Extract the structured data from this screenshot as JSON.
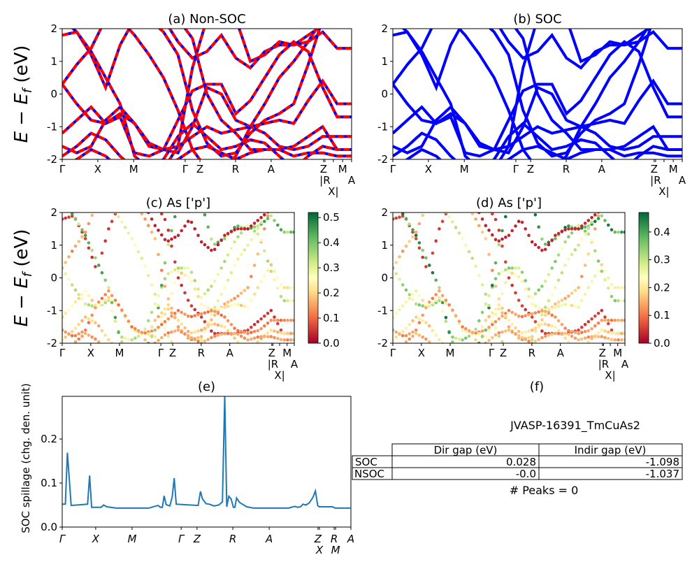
{
  "chart_data": [
    {
      "id": "a",
      "type": "line",
      "title": "(a) Non-SOC",
      "ylabel": {
        "main": "E − E",
        "sub": "f",
        "unit": " (eV)"
      },
      "ylim": [
        -2,
        2
      ],
      "yticks": [
        -2,
        -1,
        0,
        1,
        2
      ],
      "xticks": [
        "Γ",
        "X",
        "M",
        "Γ",
        "Z",
        "R",
        "A",
        "Z",
        "|R",
        "X|",
        "M",
        "A"
      ],
      "line_colors": [
        "#ff0000",
        "#0000ff"
      ],
      "style": "red dashed over blue"
    },
    {
      "id": "b",
      "type": "line",
      "title": "(b) SOC",
      "ylim": [
        -2,
        2
      ],
      "yticks": [
        -2,
        -1,
        0,
        1,
        2
      ],
      "xticks": [
        "Γ",
        "X",
        "M",
        "Γ",
        "Z",
        "R",
        "A",
        "Z",
        "|R",
        "X|",
        "M",
        "A"
      ],
      "line_colors": [
        "#0000ff"
      ]
    },
    {
      "id": "c",
      "type": "scatter",
      "title": "(c)  As ['p']",
      "ylabel": {
        "main": "E − E",
        "sub": "f",
        "unit": " (eV)"
      },
      "ylim": [
        -2,
        2
      ],
      "yticks": [
        -2,
        -1,
        0,
        1,
        2
      ],
      "xticks": [
        "Γ",
        "X",
        "M",
        "Γ",
        "Z",
        "R",
        "A",
        "Z",
        "|R",
        "X|",
        "M",
        "A"
      ],
      "colormap": "RdYlGn",
      "colorbar_range": [
        0,
        0.52
      ],
      "colorbar_ticks": [
        "0.0",
        "0.1",
        "0.2",
        "0.3",
        "0.4",
        "0.5"
      ]
    },
    {
      "id": "d",
      "type": "scatter",
      "title": "(d) As ['p']",
      "ylim": [
        -2,
        2
      ],
      "yticks": [
        -2,
        -1,
        0,
        1,
        2
      ],
      "xticks": [
        "Γ",
        "X",
        "M",
        "Γ",
        "Z",
        "R",
        "A",
        "Z",
        "|R",
        "X|",
        "M",
        "A"
      ],
      "colormap": "RdYlGn",
      "colorbar_range": [
        0,
        0.47
      ],
      "colorbar_ticks": [
        "0.0",
        "0.1",
        "0.2",
        "0.3",
        "0.4"
      ]
    },
    {
      "id": "e",
      "type": "line",
      "title": "(e)",
      "ylabel": "SOC spillage (chg. den. unit)",
      "ylim": [
        0,
        0.297
      ],
      "yticks": [
        "0.0",
        "0.1",
        "0.2"
      ],
      "xticks": [
        "Γ",
        "X",
        "M",
        "Γ",
        "Z",
        "R",
        "A",
        "Z",
        "X",
        "R",
        "M",
        "A"
      ],
      "xtick_pos": [
        0,
        0.116,
        0.242,
        0.412,
        0.467,
        0.591,
        0.717,
        0.886,
        0.891,
        0.942,
        0.947,
        1.0
      ],
      "color": "#1f77b4",
      "x": [
        0,
        0.011,
        0.018,
        0.031,
        0.088,
        0.095,
        0.102,
        0.135,
        0.143,
        0.155,
        0.187,
        0.3,
        0.332,
        0.34,
        0.347,
        0.353,
        0.36,
        0.373,
        0.381,
        0.388,
        0.395,
        0.471,
        0.479,
        0.486,
        0.498,
        0.51,
        0.526,
        0.542,
        0.555,
        0.563,
        0.57,
        0.577,
        0.585,
        0.593,
        0.598,
        0.604,
        0.614,
        0.639,
        0.663,
        0.784,
        0.806,
        0.815,
        0.826,
        0.834,
        0.844,
        0.856,
        0.869,
        0.877,
        0.885,
        0.89,
        0.937,
        0.945,
        0.998
      ],
      "y": [
        0.052,
        0.052,
        0.169,
        0.049,
        0.052,
        0.117,
        0.045,
        0.045,
        0.05,
        0.046,
        0.043,
        0.043,
        0.049,
        0.045,
        0.045,
        0.071,
        0.051,
        0.048,
        0.069,
        0.111,
        0.052,
        0.049,
        0.081,
        0.064,
        0.053,
        0.052,
        0.048,
        0.05,
        0.057,
        0.298,
        0.046,
        0.07,
        0.064,
        0.045,
        0.045,
        0.066,
        0.056,
        0.046,
        0.043,
        0.043,
        0.047,
        0.045,
        0.046,
        0.052,
        0.05,
        0.055,
        0.068,
        0.082,
        0.049,
        0.046,
        0.046,
        0.043,
        0.043
      ]
    }
  ],
  "bands": {
    "xtick_pos": [
      0,
      0.123,
      0.247,
      0.425,
      0.476,
      0.599,
      0.722,
      0.903,
      0.908,
      0.937,
      0.969,
      1.0
    ],
    "energies": [
      [
        1.8,
        1.9,
        1.2,
        0.2,
        1.5,
        2.3,
        2.3,
        2.3,
        2.3,
        1.7,
        0.0,
        -0.8,
        -1.2,
        -1.7,
        -1.7,
        -1.7,
        -1.6,
        -1.3,
        -1.0,
        -1.7,
        -1.7
      ],
      [
        0.3,
        0.9,
        1.4,
        2.3,
        2.3,
        2.3,
        2.3,
        1.9,
        1.2,
        -0.5,
        -1.5,
        -1.9,
        -1.8,
        -1.2,
        -0.8,
        -0.6,
        -0.3,
        0.9,
        2.3,
        2.3,
        2.3
      ],
      [
        0.3,
        -0.3,
        -0.8,
        -0.9,
        -0.7,
        -1.8,
        -1.9,
        -1.7,
        -0.8,
        0.1,
        0.3,
        0.3,
        -0.6,
        -0.2,
        0.5,
        1.2,
        1.6,
        1.3,
        0.2,
        -0.7,
        -0.7
      ],
      [
        -1.2,
        -0.8,
        -0.4,
        -0.9,
        -0.6,
        -0.9,
        -1.6,
        -1.7,
        -1.8,
        -1.0,
        0.2,
        0.0,
        -0.8,
        -1.0,
        -0.9,
        -0.8,
        -0.9,
        -0.2,
        0.4,
        -0.3,
        -0.3
      ],
      [
        -1.6,
        -1.8,
        -1.6,
        -0.8,
        -0.4,
        -0.9,
        -1.5,
        -1.7,
        -1.6,
        -1.3,
        -1.0,
        -1.2,
        -1.1,
        -1.0,
        -1.2,
        -1.6,
        -1.7,
        -1.6,
        -1.3,
        -1.3,
        -1.3
      ],
      [
        -1.9,
        -1.6,
        -1.2,
        -1.4,
        -1.9,
        -2.3,
        -2.3,
        -2.0,
        -1.3,
        -0.9,
        -1.3,
        -1.7,
        -1.6,
        -1.4,
        -1.5,
        -1.9,
        -2.3,
        -1.9,
        -1.6,
        -1.7,
        -1.7
      ],
      [
        2.3,
        1.9,
        1.3,
        0.5,
        -0.3,
        -1.9,
        -2.3,
        -2.3,
        -1.6,
        0.8,
        2.3,
        2.3,
        2.3,
        1.0,
        1.2,
        1.6,
        1.5,
        1.6,
        1.9,
        1.4,
        1.4
      ],
      [
        2.3,
        2.3,
        2.3,
        2.3,
        2.3,
        1.8,
        1.2,
        0.5,
        -0.5,
        -1.7,
        -2.3,
        -2.3,
        -1.9,
        -1.0,
        -0.3,
        0.5,
        1.0,
        1.6,
        2.3,
        2.3,
        2.3
      ],
      [
        2.3,
        2.3,
        2.3,
        2.3,
        2.3,
        2.3,
        2.3,
        2.3,
        1.6,
        1.1,
        1.3,
        1.8,
        1.1,
        0.8,
        1.3,
        1.5,
        1.5,
        1.8,
        2.1,
        2.3,
        2.3
      ],
      [
        -2.3,
        -2.0,
        -1.7,
        -1.9,
        -2.3,
        -2.3,
        -2.3,
        -2.3,
        -2.0,
        -1.7,
        -1.6,
        -1.8,
        -2.0,
        -1.8,
        -1.7,
        -1.7,
        -1.9,
        -1.8,
        -1.8,
        -1.9,
        -1.9
      ]
    ],
    "as_p_weight": [
      0.05,
      0.15,
      0.3,
      0.22,
      0.12,
      0.18,
      0.38,
      0.26,
      0.03,
      0.14
    ]
  },
  "panel_f": {
    "title": "(f)",
    "material": "JVASP-16391_TmCuAs2",
    "table": {
      "headers": [
        "",
        "Dir gap (eV)",
        "Indir gap (eV)"
      ],
      "rows": [
        [
          "SOC",
          "0.028",
          "-1.098"
        ],
        [
          "NSOC",
          "-0.0",
          "-1.037"
        ]
      ]
    },
    "peaks": "# Peaks = 0"
  }
}
